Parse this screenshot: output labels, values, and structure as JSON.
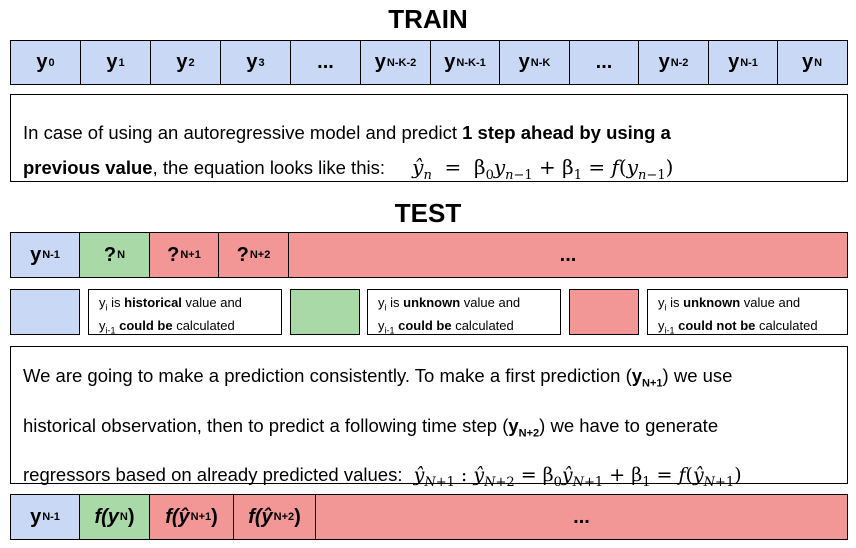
{
  "train": {
    "title": "TRAIN",
    "cells": [
      {
        "b": "y",
        "s": "0"
      },
      {
        "b": "y",
        "s": "1"
      },
      {
        "b": "y",
        "s": "2"
      },
      {
        "b": "y",
        "s": "3"
      },
      {
        "b": "...",
        "s": ""
      },
      {
        "b": "y",
        "s": "N-K-2"
      },
      {
        "b": "y",
        "s": "N-K-1"
      },
      {
        "b": "y",
        "s": "N-K"
      },
      {
        "b": "...",
        "s": ""
      },
      {
        "b": "y",
        "s": "N-2"
      },
      {
        "b": "y",
        "s": "N-1"
      },
      {
        "b": "y",
        "s": "N"
      }
    ],
    "desc_1": "In case of using an autoregressive model and predict ",
    "desc_bold": "1 step ahead by using a",
    "desc_bold_2": "previous value",
    "desc_2": ", the equation looks like this:"
  },
  "test": {
    "title": "TEST",
    "cells": [
      {
        "b": "y",
        "s": "N-1",
        "color": "blue"
      },
      {
        "b": "?",
        "s": "N",
        "color": "green"
      },
      {
        "b": "?",
        "s": "N+1",
        "color": "red"
      },
      {
        "b": "?",
        "s": "N+2",
        "color": "red"
      },
      {
        "b": "...",
        "s": "",
        "color": "red"
      }
    ]
  },
  "legend": [
    {
      "color": "blue",
      "y": "y",
      "i": "i",
      "t1": " is ",
      "bold1": "historical",
      "t2": " value and",
      "im1": "i-1",
      "bold2": "could be",
      "t3": " calculated"
    },
    {
      "color": "green",
      "y": "y",
      "i": "i",
      "t1": " is ",
      "bold1": "unknown",
      "t2": " value and",
      "im1": "i-1",
      "bold2": "could be",
      "t3": " calculated"
    },
    {
      "color": "red",
      "y": "y",
      "i": "i",
      "t1": " is ",
      "bold1": "unknown",
      "t2": " value and",
      "im1": "i-1",
      "bold2": "could not be",
      "t3": " calculated"
    }
  ],
  "prediction": {
    "l1a": "We are going to make a prediction consistently. To make a first prediction (",
    "l1y": "y",
    "l1s": "N+1",
    "l1b": ") we use",
    "l2a": "historical observation, then to predict a following time step (",
    "l2y": "y",
    "l2s": "N+2",
    "l2b": ") we have to generate",
    "l3a": "regressors based on already predicted values:"
  },
  "bottom": {
    "cells": [
      {
        "b": "y",
        "s": "N-1",
        "color": "blue"
      },
      {
        "b": "f(y",
        "s": "N",
        "e": ")",
        "color": "green"
      },
      {
        "b": "f(ŷ",
        "s": "N+1",
        "e": ")",
        "color": "red"
      },
      {
        "b": "f(ŷ",
        "s": "N+2",
        "e": ")",
        "color": "red"
      },
      {
        "b": "...",
        "s": "",
        "e": "",
        "color": "red"
      }
    ]
  },
  "colors": {
    "blue": "#c9d9f5",
    "green": "#a9d9a6",
    "red": "#f29696"
  }
}
